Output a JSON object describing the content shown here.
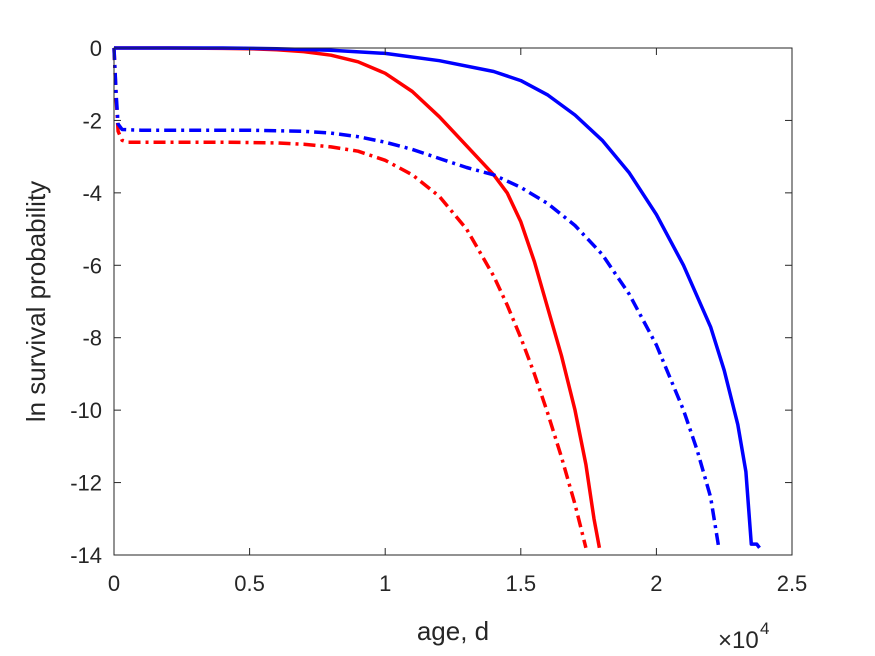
{
  "chart_data": {
    "type": "line",
    "xlabel": "age, d",
    "ylabel": "ln survival probability",
    "x_exponent_base": "×10",
    "x_exponent_power": "4",
    "xlim": [
      0,
      25000
    ],
    "ylim": [
      -14,
      0
    ],
    "xticks": [
      0,
      5000,
      10000,
      15000,
      20000,
      25000
    ],
    "xtick_labels": [
      "0",
      "0.5",
      "1",
      "1.5",
      "2",
      "2.5"
    ],
    "yticks": [
      0,
      -2,
      -4,
      -6,
      -8,
      -10,
      -12,
      -14
    ],
    "ytick_labels": [
      "0",
      "-2",
      "-4",
      "-6",
      "-8",
      "-10",
      "-12",
      "-14"
    ],
    "grid": false,
    "box": true,
    "series": [
      {
        "color": "#ff0000",
        "linestyle": "solid",
        "points": [
          [
            0,
            0
          ],
          [
            2000,
            0
          ],
          [
            4000,
            -0.01
          ],
          [
            5000,
            -0.02
          ],
          [
            6000,
            -0.05
          ],
          [
            7000,
            -0.1
          ],
          [
            8000,
            -0.2
          ],
          [
            9000,
            -0.38
          ],
          [
            10000,
            -0.7
          ],
          [
            11000,
            -1.2
          ],
          [
            12000,
            -1.9
          ],
          [
            13000,
            -2.7
          ],
          [
            14000,
            -3.5
          ],
          [
            14500,
            -4.0
          ],
          [
            15000,
            -4.8
          ],
          [
            15500,
            -5.9
          ],
          [
            16000,
            -7.2
          ],
          [
            16500,
            -8.5
          ],
          [
            17000,
            -10.0
          ],
          [
            17400,
            -11.5
          ],
          [
            17700,
            -13.0
          ],
          [
            17900,
            -13.8
          ]
        ]
      },
      {
        "color": "#ff0000",
        "linestyle": "dashdot",
        "points": [
          [
            0,
            0
          ],
          [
            80,
            -1.4
          ],
          [
            150,
            -2.3
          ],
          [
            300,
            -2.55
          ],
          [
            500,
            -2.6
          ],
          [
            2000,
            -2.6
          ],
          [
            4000,
            -2.6
          ],
          [
            6000,
            -2.62
          ],
          [
            7000,
            -2.66
          ],
          [
            8000,
            -2.73
          ],
          [
            9000,
            -2.85
          ],
          [
            10000,
            -3.1
          ],
          [
            11000,
            -3.5
          ],
          [
            12000,
            -4.1
          ],
          [
            13000,
            -5.0
          ],
          [
            14000,
            -6.3
          ],
          [
            14500,
            -7.1
          ],
          [
            15000,
            -8.0
          ],
          [
            15500,
            -9.0
          ],
          [
            16000,
            -10.1
          ],
          [
            16500,
            -11.3
          ],
          [
            17000,
            -12.6
          ],
          [
            17400,
            -13.8
          ]
        ]
      },
      {
        "color": "#0000ff",
        "linestyle": "solid",
        "points": [
          [
            0,
            0
          ],
          [
            4000,
            0
          ],
          [
            6000,
            -0.02
          ],
          [
            8000,
            -0.06
          ],
          [
            10000,
            -0.15
          ],
          [
            12000,
            -0.35
          ],
          [
            14000,
            -0.65
          ],
          [
            15000,
            -0.9
          ],
          [
            16000,
            -1.3
          ],
          [
            17000,
            -1.85
          ],
          [
            18000,
            -2.55
          ],
          [
            19000,
            -3.45
          ],
          [
            20000,
            -4.6
          ],
          [
            21000,
            -6.0
          ],
          [
            22000,
            -7.7
          ],
          [
            22500,
            -8.9
          ],
          [
            23000,
            -10.4
          ],
          [
            23300,
            -11.7
          ],
          [
            23500,
            -13.7
          ],
          [
            23700,
            -13.7
          ],
          [
            23800,
            -13.8
          ]
        ]
      },
      {
        "color": "#0000ff",
        "linestyle": "dashdot",
        "points": [
          [
            0,
            0
          ],
          [
            80,
            -1.3
          ],
          [
            150,
            -2.1
          ],
          [
            300,
            -2.25
          ],
          [
            1000,
            -2.27
          ],
          [
            3000,
            -2.27
          ],
          [
            5000,
            -2.27
          ],
          [
            7000,
            -2.3
          ],
          [
            8000,
            -2.35
          ],
          [
            9000,
            -2.45
          ],
          [
            10000,
            -2.6
          ],
          [
            11000,
            -2.8
          ],
          [
            12000,
            -3.05
          ],
          [
            13000,
            -3.3
          ],
          [
            14000,
            -3.5
          ],
          [
            15000,
            -3.85
          ],
          [
            16000,
            -4.3
          ],
          [
            17000,
            -4.9
          ],
          [
            18000,
            -5.7
          ],
          [
            19000,
            -6.8
          ],
          [
            20000,
            -8.2
          ],
          [
            21000,
            -10.0
          ],
          [
            21500,
            -11.1
          ],
          [
            22000,
            -12.4
          ],
          [
            22300,
            -13.8
          ]
        ]
      }
    ]
  }
}
